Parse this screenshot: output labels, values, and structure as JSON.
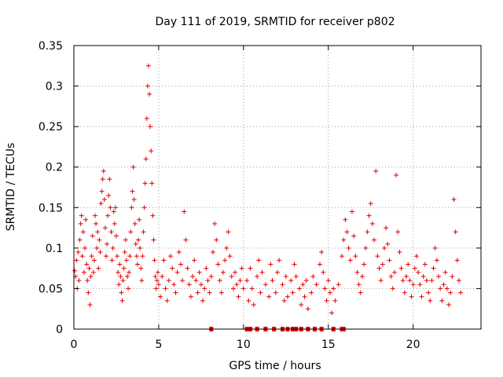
{
  "chart_data": {
    "type": "scatter",
    "title": "Day 111 of 2019, SRMTID for receiver p802",
    "xlabel": "GPS time / hours",
    "ylabel": "SRMTID / TECUs",
    "xlim": [
      0,
      24
    ],
    "ylim": [
      0,
      0.35
    ],
    "xticks": [
      0,
      5,
      10,
      15,
      20
    ],
    "xtick_labels": [
      "0",
      "5",
      "10",
      "15",
      "20"
    ],
    "yticks": [
      0,
      0.05,
      0.1,
      0.15,
      0.2,
      0.25,
      0.3,
      0.35
    ],
    "ytick_labels": [
      "0",
      "0.05",
      "0.1",
      "0.15",
      "0.2",
      "0.25",
      "0.3",
      "0.35"
    ],
    "grid": true,
    "marker": "plus",
    "marker_color": "#e00000",
    "series": [
      {
        "name": "SRMTID",
        "points": [
          [
            0.05,
            0.072
          ],
          [
            0.1,
            0.065
          ],
          [
            0.15,
            0.085
          ],
          [
            0.2,
            0.05
          ],
          [
            0.25,
            0.095
          ],
          [
            0.3,
            0.06
          ],
          [
            0.35,
            0.11
          ],
          [
            0.4,
            0.13
          ],
          [
            0.45,
            0.14
          ],
          [
            0.5,
            0.09
          ],
          [
            0.55,
            0.12
          ],
          [
            0.6,
            0.07
          ],
          [
            0.65,
            0.1
          ],
          [
            0.7,
            0.135
          ],
          [
            0.75,
            0.08
          ],
          [
            0.8,
            0.06
          ],
          [
            0.85,
            0.045
          ],
          [
            0.9,
            0.075
          ],
          [
            0.95,
            0.03
          ],
          [
            1.0,
            0.065
          ],
          [
            1.05,
            0.09
          ],
          [
            1.1,
            0.115
          ],
          [
            1.15,
            0.07
          ],
          [
            1.2,
            0.085
          ],
          [
            1.25,
            0.14
          ],
          [
            1.3,
            0.13
          ],
          [
            1.35,
            0.1
          ],
          [
            1.4,
            0.12
          ],
          [
            1.45,
            0.075
          ],
          [
            1.5,
            0.11
          ],
          [
            1.55,
            0.095
          ],
          [
            1.6,
            0.155
          ],
          [
            1.65,
            0.17
          ],
          [
            1.7,
            0.185
          ],
          [
            1.75,
            0.195
          ],
          [
            1.8,
            0.16
          ],
          [
            1.85,
            0.125
          ],
          [
            1.9,
            0.09
          ],
          [
            1.95,
            0.105
          ],
          [
            2.0,
            0.14
          ],
          [
            2.05,
            0.165
          ],
          [
            2.1,
            0.185
          ],
          [
            2.15,
            0.15
          ],
          [
            2.2,
            0.12
          ],
          [
            2.25,
            0.085
          ],
          [
            2.3,
            0.1
          ],
          [
            2.35,
            0.145
          ],
          [
            2.4,
            0.13
          ],
          [
            2.45,
            0.15
          ],
          [
            2.5,
            0.115
          ],
          [
            2.55,
            0.09
          ],
          [
            2.6,
            0.07
          ],
          [
            2.65,
            0.055
          ],
          [
            2.7,
            0.08
          ],
          [
            2.75,
            0.065
          ],
          [
            2.8,
            0.045
          ],
          [
            2.85,
            0.035
          ],
          [
            2.9,
            0.06
          ],
          [
            2.95,
            0.075
          ],
          [
            3.0,
            0.095
          ],
          [
            3.05,
            0.11
          ],
          [
            3.1,
            0.085
          ],
          [
            3.15,
            0.065
          ],
          [
            3.2,
            0.05
          ],
          [
            3.25,
            0.07
          ],
          [
            3.3,
            0.09
          ],
          [
            3.35,
            0.12
          ],
          [
            3.4,
            0.15
          ],
          [
            3.45,
            0.17
          ],
          [
            3.5,
            0.2
          ],
          [
            3.55,
            0.16
          ],
          [
            3.6,
            0.13
          ],
          [
            3.65,
            0.105
          ],
          [
            3.7,
            0.09
          ],
          [
            3.75,
            0.08
          ],
          [
            3.8,
            0.11
          ],
          [
            3.85,
            0.135
          ],
          [
            3.9,
            0.1
          ],
          [
            3.95,
            0.075
          ],
          [
            4.0,
            0.06
          ],
          [
            4.05,
            0.09
          ],
          [
            4.1,
            0.12
          ],
          [
            4.15,
            0.15
          ],
          [
            4.2,
            0.18
          ],
          [
            4.25,
            0.21
          ],
          [
            4.3,
            0.26
          ],
          [
            4.35,
            0.3
          ],
          [
            4.4,
            0.325
          ],
          [
            4.45,
            0.29
          ],
          [
            4.5,
            0.25
          ],
          [
            4.55,
            0.22
          ],
          [
            4.6,
            0.18
          ],
          [
            4.65,
            0.14
          ],
          [
            4.7,
            0.11
          ],
          [
            4.75,
            0.085
          ],
          [
            4.8,
            0.065
          ],
          [
            4.85,
            0.05
          ],
          [
            4.9,
            0.06
          ],
          [
            4.95,
            0.07
          ],
          [
            5.0,
            0.055
          ],
          [
            5.1,
            0.04
          ],
          [
            5.2,
            0.065
          ],
          [
            5.3,
            0.085
          ],
          [
            5.4,
            0.05
          ],
          [
            5.5,
            0.035
          ],
          [
            5.6,
            0.06
          ],
          [
            5.7,
            0.09
          ],
          [
            5.8,
            0.075
          ],
          [
            5.9,
            0.055
          ],
          [
            6.0,
            0.045
          ],
          [
            6.1,
            0.07
          ],
          [
            6.2,
            0.095
          ],
          [
            6.3,
            0.08
          ],
          [
            6.4,
            0.06
          ],
          [
            6.5,
            0.145
          ],
          [
            6.6,
            0.11
          ],
          [
            6.7,
            0.075
          ],
          [
            6.8,
            0.055
          ],
          [
            6.9,
            0.04
          ],
          [
            7.0,
            0.065
          ],
          [
            7.1,
            0.085
          ],
          [
            7.2,
            0.06
          ],
          [
            7.3,
            0.045
          ],
          [
            7.4,
            0.07
          ],
          [
            7.5,
            0.055
          ],
          [
            7.6,
            0.035
          ],
          [
            7.7,
            0.05
          ],
          [
            7.8,
            0.075
          ],
          [
            7.9,
            0.06
          ],
          [
            8.0,
            0.045
          ],
          [
            8.1,
            0.065
          ],
          [
            8.2,
            0.095
          ],
          [
            8.3,
            0.13
          ],
          [
            8.4,
            0.11
          ],
          [
            8.5,
            0.08
          ],
          [
            8.6,
            0.06
          ],
          [
            8.7,
            0.045
          ],
          [
            8.8,
            0.07
          ],
          [
            8.9,
            0.085
          ],
          [
            9.0,
            0.1
          ],
          [
            9.1,
            0.12
          ],
          [
            9.2,
            0.09
          ],
          [
            9.3,
            0.065
          ],
          [
            9.4,
            0.05
          ],
          [
            9.5,
            0.07
          ],
          [
            9.6,
            0.055
          ],
          [
            9.7,
            0.04
          ],
          [
            9.8,
            0.06
          ],
          [
            9.9,
            0.075
          ],
          [
            10.0,
            0.05
          ],
          [
            10.2,
            0.06
          ],
          [
            10.3,
            0.035
          ],
          [
            10.4,
            0.075
          ],
          [
            10.5,
            0.05
          ],
          [
            10.6,
            0.03
          ],
          [
            10.8,
            0.065
          ],
          [
            10.9,
            0.085
          ],
          [
            11.0,
            0.045
          ],
          [
            11.1,
            0.07
          ],
          [
            11.3,
            0.055
          ],
          [
            11.5,
            0.04
          ],
          [
            11.6,
            0.08
          ],
          [
            11.7,
            0.06
          ],
          [
            11.9,
            0.045
          ],
          [
            12.0,
            0.07
          ],
          [
            12.1,
            0.085
          ],
          [
            12.3,
            0.055
          ],
          [
            12.4,
            0.035
          ],
          [
            12.5,
            0.065
          ],
          [
            12.6,
            0.04
          ],
          [
            12.8,
            0.06
          ],
          [
            12.9,
            0.045
          ],
          [
            13.0,
            0.08
          ],
          [
            13.1,
            0.065
          ],
          [
            13.3,
            0.05
          ],
          [
            13.4,
            0.03
          ],
          [
            13.5,
            0.055
          ],
          [
            13.6,
            0.04
          ],
          [
            13.7,
            0.06
          ],
          [
            13.8,
            0.025
          ],
          [
            14.0,
            0.045
          ],
          [
            14.1,
            0.065
          ],
          [
            14.3,
            0.055
          ],
          [
            14.5,
            0.08
          ],
          [
            14.6,
            0.095
          ],
          [
            14.7,
            0.07
          ],
          [
            14.8,
            0.05
          ],
          [
            14.9,
            0.035
          ],
          [
            15.0,
            0.06
          ],
          [
            15.1,
            0.045
          ],
          [
            15.2,
            0.02
          ],
          [
            15.3,
            0.05
          ],
          [
            15.4,
            0.035
          ],
          [
            15.6,
            0.055
          ],
          [
            15.8,
            0.09
          ],
          [
            15.9,
            0.11
          ],
          [
            16.0,
            0.135
          ],
          [
            16.1,
            0.12
          ],
          [
            16.2,
            0.1
          ],
          [
            16.3,
            0.085
          ],
          [
            16.4,
            0.145
          ],
          [
            16.5,
            0.115
          ],
          [
            16.6,
            0.09
          ],
          [
            16.7,
            0.07
          ],
          [
            16.8,
            0.055
          ],
          [
            16.9,
            0.045
          ],
          [
            17.0,
            0.065
          ],
          [
            17.1,
            0.08
          ],
          [
            17.2,
            0.1
          ],
          [
            17.3,
            0.12
          ],
          [
            17.4,
            0.14
          ],
          [
            17.5,
            0.155
          ],
          [
            17.6,
            0.13
          ],
          [
            17.7,
            0.11
          ],
          [
            17.8,
            0.195
          ],
          [
            17.9,
            0.09
          ],
          [
            18.0,
            0.075
          ],
          [
            18.1,
            0.06
          ],
          [
            18.2,
            0.08
          ],
          [
            18.3,
            0.1
          ],
          [
            18.4,
            0.125
          ],
          [
            18.5,
            0.105
          ],
          [
            18.6,
            0.085
          ],
          [
            18.7,
            0.065
          ],
          [
            18.8,
            0.05
          ],
          [
            18.9,
            0.07
          ],
          [
            19.0,
            0.19
          ],
          [
            19.1,
            0.12
          ],
          [
            19.2,
            0.095
          ],
          [
            19.3,
            0.075
          ],
          [
            19.4,
            0.06
          ],
          [
            19.5,
            0.045
          ],
          [
            19.6,
            0.065
          ],
          [
            19.7,
            0.08
          ],
          [
            19.8,
            0.06
          ],
          [
            19.9,
            0.04
          ],
          [
            20.0,
            0.055
          ],
          [
            20.1,
            0.075
          ],
          [
            20.2,
            0.09
          ],
          [
            20.3,
            0.07
          ],
          [
            20.4,
            0.055
          ],
          [
            20.5,
            0.04
          ],
          [
            20.6,
            0.065
          ],
          [
            20.7,
            0.08
          ],
          [
            20.8,
            0.06
          ],
          [
            20.9,
            0.045
          ],
          [
            21.0,
            0.035
          ],
          [
            21.1,
            0.06
          ],
          [
            21.2,
            0.075
          ],
          [
            21.3,
            0.1
          ],
          [
            21.4,
            0.085
          ],
          [
            21.5,
            0.065
          ],
          [
            21.6,
            0.05
          ],
          [
            21.7,
            0.035
          ],
          [
            21.8,
            0.055
          ],
          [
            21.9,
            0.07
          ],
          [
            22.0,
            0.05
          ],
          [
            22.1,
            0.03
          ],
          [
            22.2,
            0.045
          ],
          [
            22.3,
            0.065
          ],
          [
            22.4,
            0.16
          ],
          [
            22.5,
            0.12
          ],
          [
            22.6,
            0.085
          ],
          [
            22.7,
            0.06
          ],
          [
            22.8,
            0.045
          ]
        ]
      }
    ],
    "zero_points": [
      8.1,
      10.2,
      10.4,
      10.8,
      11.3,
      11.8,
      12.3,
      12.6,
      12.9,
      13.1,
      13.4,
      13.8,
      14.2,
      14.6,
      15.3,
      15.8,
      15.9
    ]
  }
}
